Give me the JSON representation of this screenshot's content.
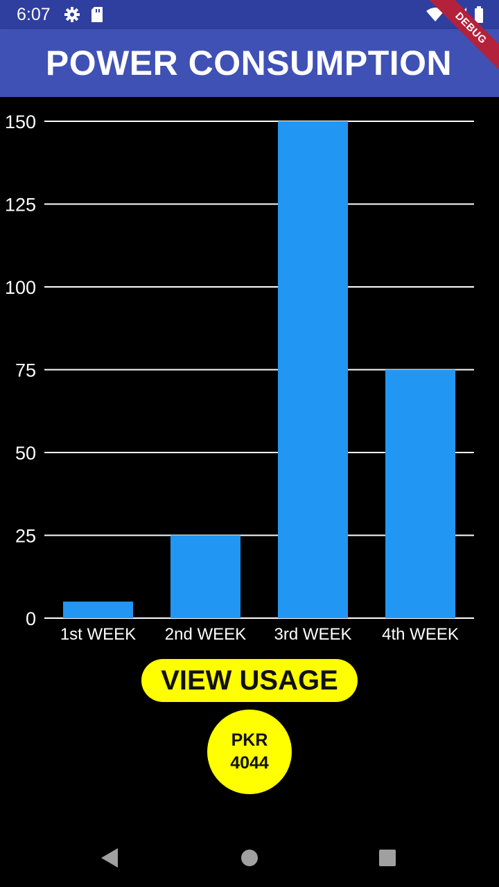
{
  "status_bar": {
    "time": "6:07",
    "icons": [
      "gear-icon",
      "sd-card-icon",
      "wifi-icon",
      "signal-icon",
      "battery-icon"
    ]
  },
  "app_bar": {
    "title": "POWER CONSUMPTION",
    "debug_label": "DEBUG",
    "color": "#3f51b5"
  },
  "chart_data": {
    "type": "bar",
    "categories": [
      "1st WEEK",
      "2nd WEEK",
      "3rd WEEK",
      "4th WEEK"
    ],
    "values": [
      5,
      25,
      150,
      75
    ],
    "yticks": [
      0,
      25,
      50,
      75,
      100,
      125,
      150
    ],
    "ylim": [
      0,
      150
    ],
    "grid": true,
    "bar_color": "#2196f3",
    "title": "",
    "xlabel": "",
    "ylabel": ""
  },
  "actions": {
    "usage_button_label": "VIEW USAGE",
    "amount_line1": "PKR",
    "amount_line2": "4044",
    "accent_color": "#ffff00"
  },
  "nav_bar": {
    "icons": [
      "back-icon",
      "home-icon",
      "recents-icon"
    ]
  }
}
